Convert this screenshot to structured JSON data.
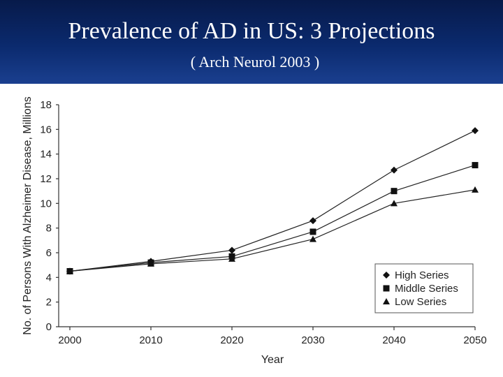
{
  "header": {
    "title": "Prevalence of AD in US: 3 Projections",
    "subtitle": "( Arch Neurol 2003 )"
  },
  "chart_data": {
    "type": "line",
    "title": "Prevalence of AD in US: 3 Projections",
    "xlabel": "Year",
    "ylabel": "No. of Persons With Alzheimer Disease, Millions",
    "x": [
      2000,
      2010,
      2020,
      2030,
      2040,
      2050
    ],
    "ylim": [
      0,
      18
    ],
    "yticks": [
      0,
      2,
      4,
      6,
      8,
      10,
      12,
      14,
      16,
      18
    ],
    "legend_position": "bottom-right",
    "series": [
      {
        "name": "High Series",
        "marker": "diamond",
        "values": [
          4.5,
          5.3,
          6.2,
          8.6,
          12.7,
          15.9
        ]
      },
      {
        "name": "Middle Series",
        "marker": "square",
        "values": [
          4.5,
          5.2,
          5.7,
          7.7,
          11.0,
          13.1
        ]
      },
      {
        "name": "Low Series",
        "marker": "triangle",
        "values": [
          4.5,
          5.1,
          5.5,
          7.1,
          10.0,
          11.1
        ]
      }
    ]
  }
}
